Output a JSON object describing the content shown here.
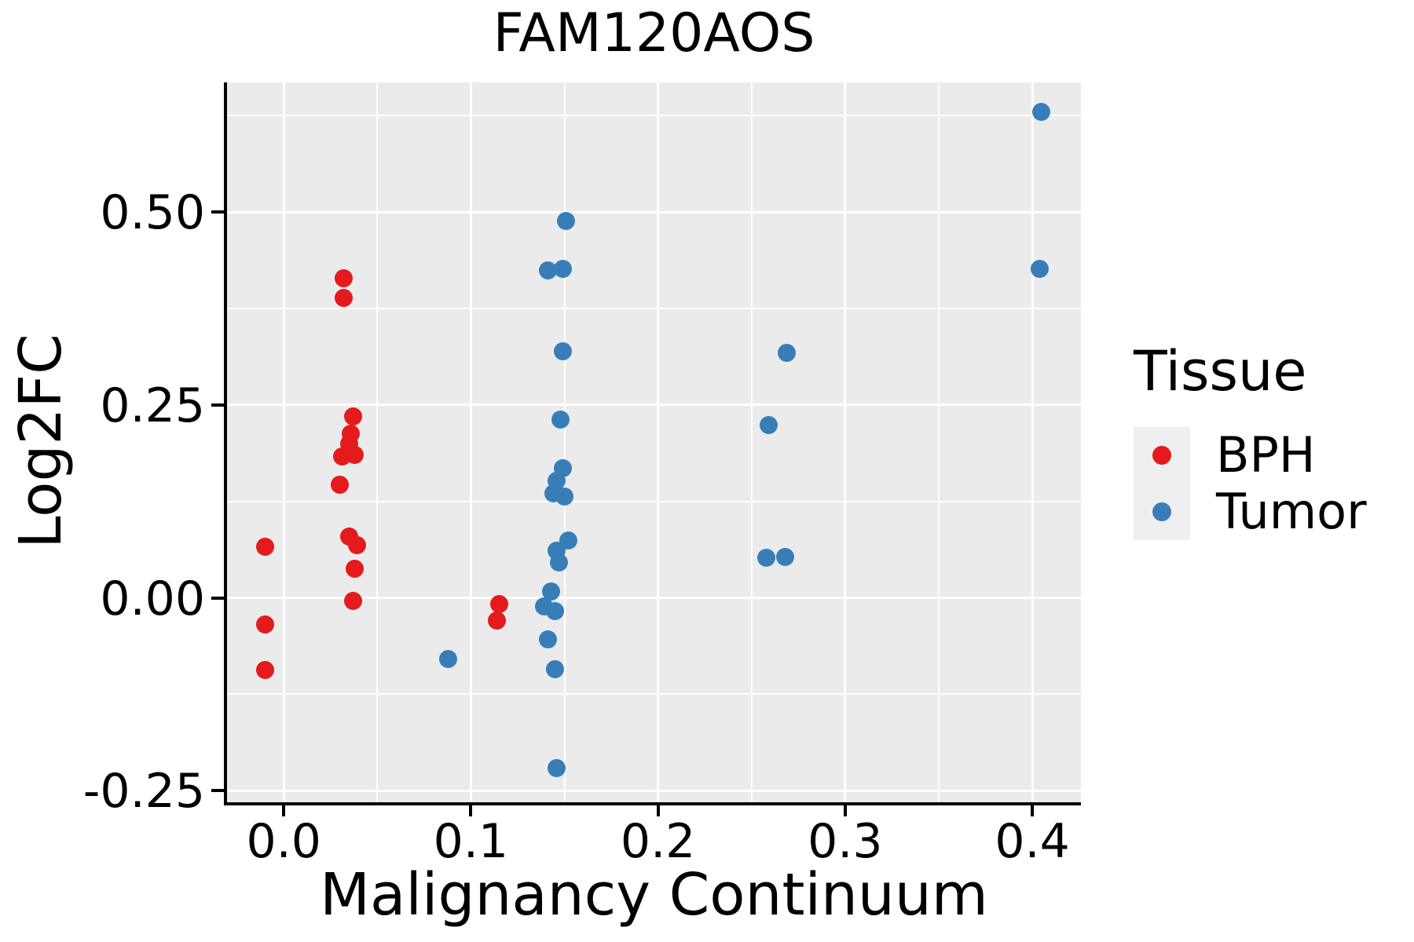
{
  "chart_data": {
    "type": "scatter",
    "title": "FAM120AOS",
    "xlabel": "Malignancy Continuum",
    "ylabel": "Log2FC",
    "legend_title": "Tissue",
    "legend_position": "right",
    "grid": "major+minor",
    "panel_bg": "#EBEBEB",
    "grid_color": "#FFFFFF",
    "axis_color": "#000000",
    "legend_key_bg": "#EFEFEF",
    "xlim": [
      -0.0303,
      0.426
    ],
    "ylim": [
      -0.265,
      0.668
    ],
    "x_ticks": [
      0.0,
      0.1,
      0.2,
      0.3,
      0.4
    ],
    "x_tick_labels": [
      "0.0",
      "0.1",
      "0.2",
      "0.3",
      "0.4"
    ],
    "y_ticks": [
      -0.25,
      0.0,
      0.25,
      0.5
    ],
    "y_tick_labels": [
      "-0.25",
      "0.00",
      "0.25",
      "0.50"
    ],
    "x_minor_ticks": [
      0.05,
      0.15,
      0.25,
      0.35
    ],
    "y_minor_ticks": [
      -0.125,
      0.125,
      0.375,
      0.625
    ],
    "series": [
      {
        "name": "BPH",
        "color": "#E41A1C",
        "points": [
          [
            -0.01,
            0.066
          ],
          [
            -0.01,
            -0.035
          ],
          [
            -0.01,
            -0.094
          ],
          [
            0.032,
            0.414
          ],
          [
            0.032,
            0.389
          ],
          [
            0.037,
            0.235
          ],
          [
            0.036,
            0.213
          ],
          [
            0.035,
            0.199
          ],
          [
            0.031,
            0.183
          ],
          [
            0.038,
            0.185
          ],
          [
            0.03,
            0.147
          ],
          [
            0.035,
            0.079
          ],
          [
            0.039,
            0.068
          ],
          [
            0.038,
            0.038
          ],
          [
            0.037,
            -0.004
          ],
          [
            0.115,
            -0.008
          ],
          [
            0.114,
            -0.029
          ]
        ]
      },
      {
        "name": "Tumor",
        "color": "#377EB8",
        "points": [
          [
            0.088,
            -0.079
          ],
          [
            0.151,
            0.488
          ],
          [
            0.141,
            0.424
          ],
          [
            0.149,
            0.426
          ],
          [
            0.149,
            0.32
          ],
          [
            0.148,
            0.231
          ],
          [
            0.149,
            0.168
          ],
          [
            0.146,
            0.152
          ],
          [
            0.144,
            0.135
          ],
          [
            0.15,
            0.131
          ],
          [
            0.152,
            0.074
          ],
          [
            0.146,
            0.061
          ],
          [
            0.147,
            0.046
          ],
          [
            0.143,
            0.008
          ],
          [
            0.139,
            -0.011
          ],
          [
            0.145,
            -0.017
          ],
          [
            0.141,
            -0.054
          ],
          [
            0.145,
            -0.093
          ],
          [
            0.146,
            -0.221
          ],
          [
            0.269,
            0.317
          ],
          [
            0.259,
            0.224
          ],
          [
            0.258,
            0.052
          ],
          [
            0.268,
            0.053
          ],
          [
            0.405,
            0.63
          ],
          [
            0.404,
            0.426
          ]
        ]
      }
    ]
  }
}
